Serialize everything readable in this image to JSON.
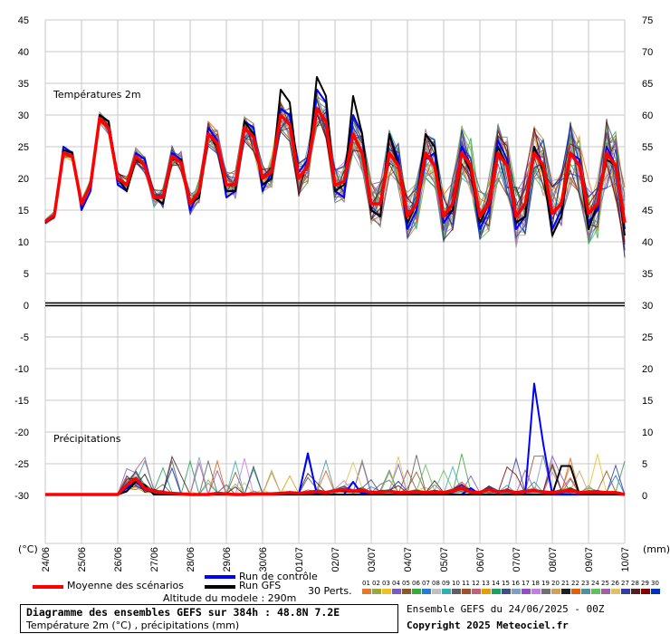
{
  "panel_labels": {
    "temperature": "Températures 2m",
    "precipitation": "Précipitations",
    "left_unit": "(°C)",
    "right_unit": "(mm)"
  },
  "left_ticks": [
    "45",
    "40",
    "35",
    "30",
    "25",
    "20",
    "15",
    "10",
    "5",
    "0",
    "-5",
    "-10",
    "-15",
    "-20",
    "-25",
    "-30"
  ],
  "right_ticks": [
    "75",
    "70",
    "65",
    "60",
    "55",
    "50",
    "45",
    "40",
    "35",
    "30",
    "25",
    "20",
    "15",
    "10",
    "5",
    "0"
  ],
  "date_labels": [
    "24/06",
    "25/06",
    "26/06",
    "27/06",
    "28/06",
    "29/06",
    "30/06",
    "01/07",
    "02/07",
    "03/07",
    "04/07",
    "05/07",
    "06/07",
    "07/07",
    "08/07",
    "09/07",
    "10/07"
  ],
  "legend": {
    "control": "Run de contrôle",
    "gfs": "Run GFS",
    "mean": "Moyenne des scénarios",
    "perts": "30 Perts.",
    "altitude": "Altitude du modele : 290m",
    "members": [
      "01",
      "02",
      "03",
      "04",
      "05",
      "06",
      "07",
      "08",
      "09",
      "10",
      "11",
      "12",
      "13",
      "14",
      "15",
      "16",
      "17",
      "18",
      "19",
      "20",
      "21",
      "22",
      "23",
      "24",
      "25",
      "26",
      "27",
      "28",
      "29",
      "30"
    ],
    "member_colors": [
      "#e07a2c",
      "#9aa83a",
      "#f0c020",
      "#7a5cc0",
      "#8a5a2a",
      "#3aaa3a",
      "#2a7ad0",
      "#c0c0c0",
      "#30b0b0",
      "#606060",
      "#a0522d",
      "#c06080",
      "#e0a000",
      "#20a060",
      "#405080",
      "#80a0c0",
      "#9050c0",
      "#c080e0",
      "#707070",
      "#d0a060",
      "#202020",
      "#e06010",
      "#5090a0",
      "#60c060",
      "#a060a0",
      "#e0c060",
      "#3040a0",
      "#502020",
      "#800000",
      "#0030c0"
    ]
  },
  "title_box": {
    "line1": "Diagramme des ensembles GEFS sur 384h : 48.8N 7.2E",
    "line2": "Température 2m (°C) , précipitations (mm)"
  },
  "footer": {
    "run": "Ensemble GEFS du 24/06/2025 - 00Z",
    "copyright": "Copyright 2025 Meteociel.fr"
  },
  "chart_data": [
    {
      "type": "line",
      "title": "Températures 2m",
      "ylabel": "(°C)",
      "ylim": [
        0,
        45
      ],
      "x": [
        "24/06 00",
        "24/06 06",
        "24/06 12",
        "24/06 18",
        "25/06 00",
        "25/06 06",
        "25/06 12",
        "25/06 18",
        "26/06 00",
        "26/06 06",
        "26/06 12",
        "26/06 18",
        "27/06 00",
        "27/06 06",
        "27/06 12",
        "27/06 18",
        "28/06 00",
        "28/06 06",
        "28/06 12",
        "28/06 18",
        "29/06 00",
        "29/06 06",
        "29/06 12",
        "29/06 18",
        "30/06 00",
        "30/06 06",
        "30/06 12",
        "30/06 18",
        "01/07 00",
        "01/07 06",
        "01/07 12",
        "01/07 18",
        "02/07 00",
        "02/07 06",
        "02/07 12",
        "02/07 18",
        "03/07 00",
        "03/07 06",
        "03/07 12",
        "03/07 18",
        "04/07 00",
        "04/07 06",
        "04/07 12",
        "04/07 18",
        "05/07 00",
        "05/07 06",
        "05/07 12",
        "05/07 18",
        "06/07 00",
        "06/07 06",
        "06/07 12",
        "06/07 18",
        "07/07 00",
        "07/07 06",
        "07/07 12",
        "07/07 18",
        "08/07 00",
        "08/07 06",
        "08/07 12",
        "08/07 18",
        "09/07 00",
        "09/07 06",
        "09/07 12",
        "09/07 18",
        "10/07 00"
      ],
      "series": [
        {
          "name": "Moyenne des scénarios",
          "color": "#ff0000",
          "values": [
            13.2,
            14.2,
            24,
            23.5,
            16,
            19,
            29.5,
            28,
            20,
            19,
            23.5,
            22,
            17,
            17,
            23.5,
            22.5,
            16,
            18,
            27,
            25.5,
            19,
            19,
            28,
            26.5,
            20,
            21,
            30,
            28.5,
            20,
            22,
            31,
            29,
            19,
            19.5,
            27,
            24,
            16,
            16,
            24,
            22,
            14,
            16,
            24,
            22,
            14,
            16,
            24,
            22,
            14,
            16,
            24,
            22,
            14,
            16,
            24,
            22,
            14.5,
            16,
            24,
            22,
            14.5,
            16,
            24,
            22,
            13
          ]
        },
        {
          "name": "Run de contrôle",
          "color": "#0000ff",
          "values": [
            13,
            14,
            25,
            24,
            15,
            18,
            30,
            29,
            19,
            18,
            24,
            23,
            17,
            16,
            24,
            23,
            15,
            18,
            28,
            26,
            17,
            18,
            29,
            28,
            18,
            21,
            31,
            30,
            21,
            23,
            34,
            32,
            18,
            17,
            30,
            27,
            15,
            14,
            27,
            23,
            12,
            15,
            23,
            24,
            13,
            15,
            25,
            22,
            12,
            15,
            26,
            23,
            12,
            14,
            25,
            22,
            12,
            15,
            24,
            23,
            13,
            15,
            25,
            22,
            12
          ]
        },
        {
          "name": "Run GFS",
          "color": "#000000",
          "values": [
            13,
            14,
            24.5,
            24,
            16,
            19,
            30,
            29,
            20,
            18,
            23,
            22,
            17,
            16,
            23,
            23,
            16,
            17,
            27,
            25,
            18,
            18,
            29,
            27,
            19,
            20,
            34,
            32,
            20,
            22,
            36,
            33,
            18,
            19,
            33,
            27,
            15,
            14,
            27,
            22,
            13,
            16,
            27,
            25,
            14,
            15,
            24,
            21,
            13,
            16,
            25,
            22,
            13,
            14,
            25,
            21,
            11,
            14,
            24,
            22,
            12,
            16,
            23,
            22,
            11
          ]
        }
      ]
    },
    {
      "type": "line",
      "title": "Précipitations",
      "ylabel": "(mm)",
      "ylim": [
        0,
        25
      ],
      "x": [
        "24/06 00",
        "24/06 06",
        "24/06 12",
        "24/06 18",
        "25/06 00",
        "25/06 06",
        "25/06 12",
        "25/06 18",
        "26/06 00",
        "26/06 06",
        "26/06 12",
        "26/06 18",
        "27/06 00",
        "27/06 06",
        "27/06 12",
        "27/06 18",
        "28/06 00",
        "28/06 06",
        "28/06 12",
        "28/06 18",
        "29/06 00",
        "29/06 06",
        "29/06 12",
        "29/06 18",
        "30/06 00",
        "30/06 06",
        "30/06 12",
        "30/06 18",
        "01/07 00",
        "01/07 06",
        "01/07 12",
        "01/07 18",
        "02/07 00",
        "02/07 06",
        "02/07 12",
        "02/07 18",
        "03/07 00",
        "03/07 06",
        "03/07 12",
        "03/07 18",
        "04/07 00",
        "04/07 06",
        "04/07 12",
        "04/07 18",
        "05/07 00",
        "05/07 06",
        "05/07 12",
        "05/07 18",
        "06/07 00",
        "06/07 06",
        "06/07 12",
        "06/07 18",
        "07/07 00",
        "07/07 06",
        "07/07 12",
        "07/07 18",
        "08/07 00",
        "08/07 06",
        "08/07 12",
        "08/07 18",
        "09/07 00",
        "09/07 06",
        "09/07 12",
        "09/07 18",
        "10/07 00"
      ],
      "series": [
        {
          "name": "Moyenne des scénarios",
          "color": "#ff0000",
          "values": [
            0,
            0,
            0,
            0,
            0,
            0,
            0,
            0,
            0,
            1.5,
            2.5,
            1,
            0.5,
            0.3,
            0.2,
            0.1,
            0,
            0,
            0,
            0.2,
            0.1,
            0,
            0,
            0.1,
            0.1,
            0.1,
            0.2,
            0.3,
            0.2,
            0.3,
            0.5,
            0.3,
            0.6,
            0.8,
            0.5,
            0.7,
            0.3,
            0.4,
            0.5,
            0.3,
            0.3,
            0.5,
            0.3,
            0.4,
            0.3,
            0.6,
            1,
            0.4,
            0.3,
            0.8,
            0.4,
            0.6,
            0.3,
            0.5,
            0.6,
            0.4,
            0.3,
            0.5,
            0.7,
            0.3,
            0.4,
            0.4,
            0.3,
            0.3,
            0
          ]
        },
        {
          "name": "Run de contrôle",
          "color": "#0000ff",
          "values": [
            0,
            0,
            0,
            0,
            0,
            0,
            0,
            0,
            0,
            1,
            2,
            1,
            0.5,
            0,
            0,
            0,
            0,
            0,
            0,
            0,
            0,
            0,
            0,
            0,
            0,
            0,
            0,
            0,
            0,
            6.5,
            0,
            0,
            0,
            0,
            2,
            0,
            0.5,
            0,
            0,
            0,
            0,
            0,
            0,
            0,
            0,
            0,
            0,
            1,
            0,
            0,
            0,
            0,
            0,
            0,
            17.5,
            8,
            0,
            0,
            0,
            0,
            0,
            0,
            0,
            0,
            0
          ]
        },
        {
          "name": "Run GFS",
          "color": "#000000",
          "values": [
            0,
            0,
            0,
            0,
            0,
            0,
            0,
            0,
            0,
            0.5,
            2,
            1.5,
            0,
            0,
            0,
            0,
            0,
            0,
            0,
            0,
            0,
            0,
            0,
            0,
            0,
            0,
            0,
            0,
            0,
            0,
            0,
            0,
            0,
            0,
            0,
            0,
            0,
            0,
            0,
            0,
            0,
            0,
            0,
            0,
            0,
            0,
            0,
            0,
            0,
            0,
            0,
            0,
            0,
            0,
            0,
            0,
            0,
            4.5,
            4.5,
            0,
            0,
            0,
            0,
            0,
            0
          ]
        }
      ]
    }
  ]
}
